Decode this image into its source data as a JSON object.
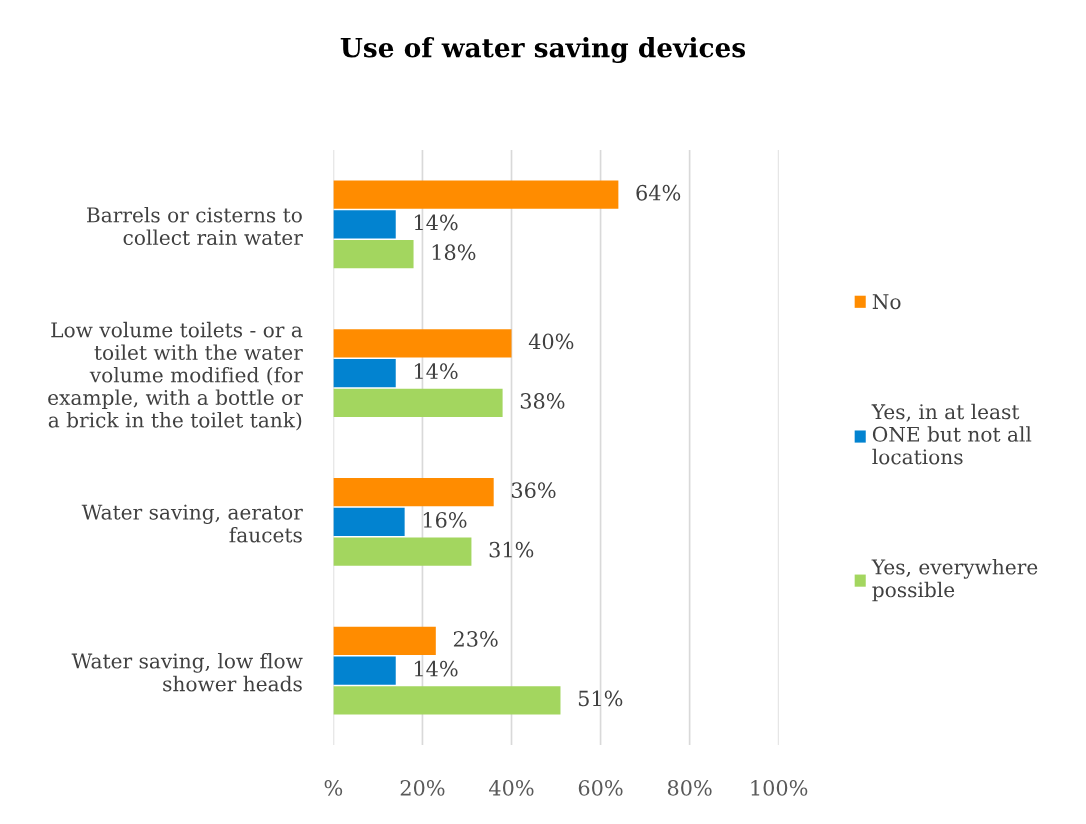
{
  "chart_data": {
    "type": "bar",
    "orientation": "horizontal",
    "title": "Use of water saving devices",
    "categories": [
      "Barrels or cisterns to\ncollect rain water",
      "Low volume toilets - or a\ntoilet with the water\nvolume modified (for\nexample, with a bottle or\na brick in the toilet tank)",
      "Water saving, aerator\nfaucets",
      "Water saving, low flow\nshower heads"
    ],
    "series": [
      {
        "name": "No",
        "color": "#ff8c00",
        "values": [
          64,
          40,
          36,
          23
        ],
        "value_labels": [
          "64%",
          "40%",
          "36%",
          "23%"
        ]
      },
      {
        "name": "Yes, in at least\nONE but not all\nlocations",
        "color": "#0283d0",
        "values": [
          14,
          14,
          16,
          14
        ],
        "value_labels": [
          "14%",
          "14%",
          "16%",
          "14%"
        ]
      },
      {
        "name": "Yes, everywhere\npossible",
        "color": "#a3d65f",
        "values": [
          18,
          38,
          31,
          51
        ],
        "value_labels": [
          "18%",
          "38%",
          "31%",
          "51%"
        ]
      }
    ],
    "xlim": [
      0,
      100
    ],
    "xticks": [
      {
        "value": 0,
        "label": "%"
      },
      {
        "value": 20,
        "label": "20%"
      },
      {
        "value": 40,
        "label": "40%"
      },
      {
        "value": 60,
        "label": "60%"
      },
      {
        "value": 80,
        "label": "80%"
      },
      {
        "value": 100,
        "label": "100%"
      }
    ],
    "grid": "x",
    "legend": "right"
  }
}
